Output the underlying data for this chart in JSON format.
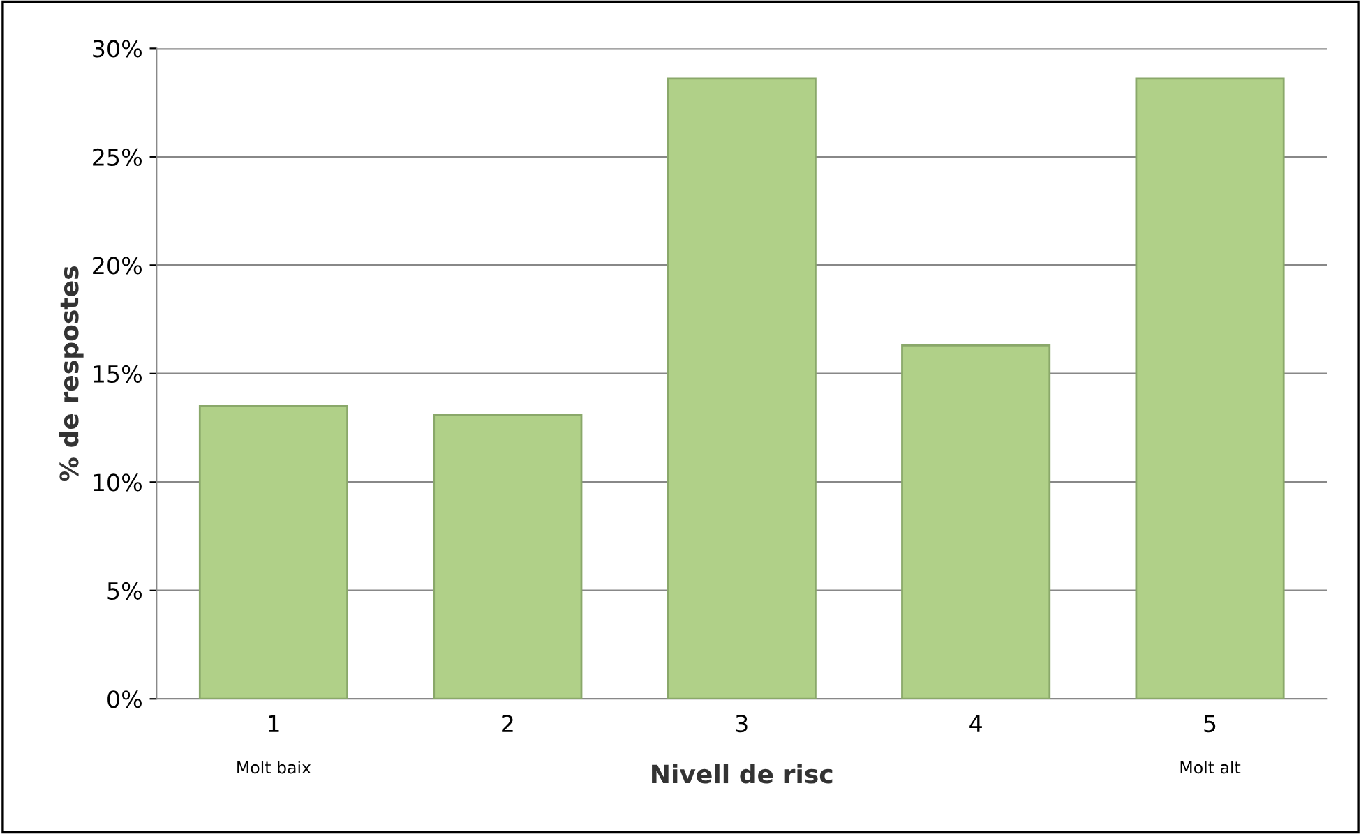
{
  "chart_data": {
    "type": "bar",
    "xlabel": "Nivell de risc",
    "ylabel": "% de respostes",
    "categories": [
      "1\nMolt baix",
      "2",
      "3",
      "4",
      "5\nMolt alt"
    ],
    "values": [
      13.5,
      13.1,
      28.6,
      16.3,
      28.6
    ],
    "color": "#b0d088",
    "ylim": [
      0,
      30
    ],
    "yticks": [
      {
        "value": 0,
        "label": "0%"
      },
      {
        "value": 5,
        "label": "5%"
      },
      {
        "value": 10,
        "label": "10%"
      },
      {
        "value": 15,
        "label": "15%"
      },
      {
        "value": 20,
        "label": "20%"
      },
      {
        "value": 25,
        "label": "25%"
      },
      {
        "value": 30,
        "label": "30%"
      }
    ],
    "grid": "y"
  }
}
